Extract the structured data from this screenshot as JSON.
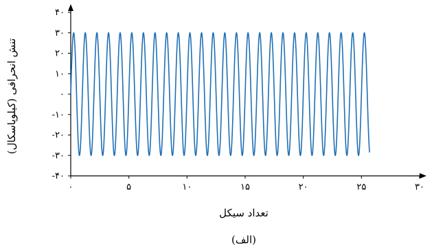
{
  "chart_data": {
    "type": "line",
    "xlabel": "تعداد سیکل",
    "ylabel": "تنش انحرافی (کیلوپاسکال)",
    "caption": "(الف)",
    "xlim": [
      0,
      30
    ],
    "ylim": [
      -40,
      40
    ],
    "x_ticks": [
      0,
      5,
      10,
      15,
      20,
      25,
      30
    ],
    "x_tick_labels": [
      "۰",
      "۵",
      "۱۰",
      "۱۵",
      "۲۰",
      "۲۵",
      "۳۰"
    ],
    "y_ticks": [
      -40,
      -30,
      -20,
      -10,
      0,
      10,
      20,
      30,
      40
    ],
    "y_tick_labels": [
      "-۴۰",
      "-۳۰",
      "-۲۰",
      "-۱۰",
      "۰",
      "۱۰",
      "۲۰",
      "۳۰",
      "۴۰"
    ],
    "grid": false,
    "legend": "none",
    "series": [
      {
        "color": "#1f6fb5",
        "function": "sine",
        "amplitude": 30,
        "cycles": 25.7,
        "x_start": 0,
        "x_end": 25.7
      }
    ]
  }
}
